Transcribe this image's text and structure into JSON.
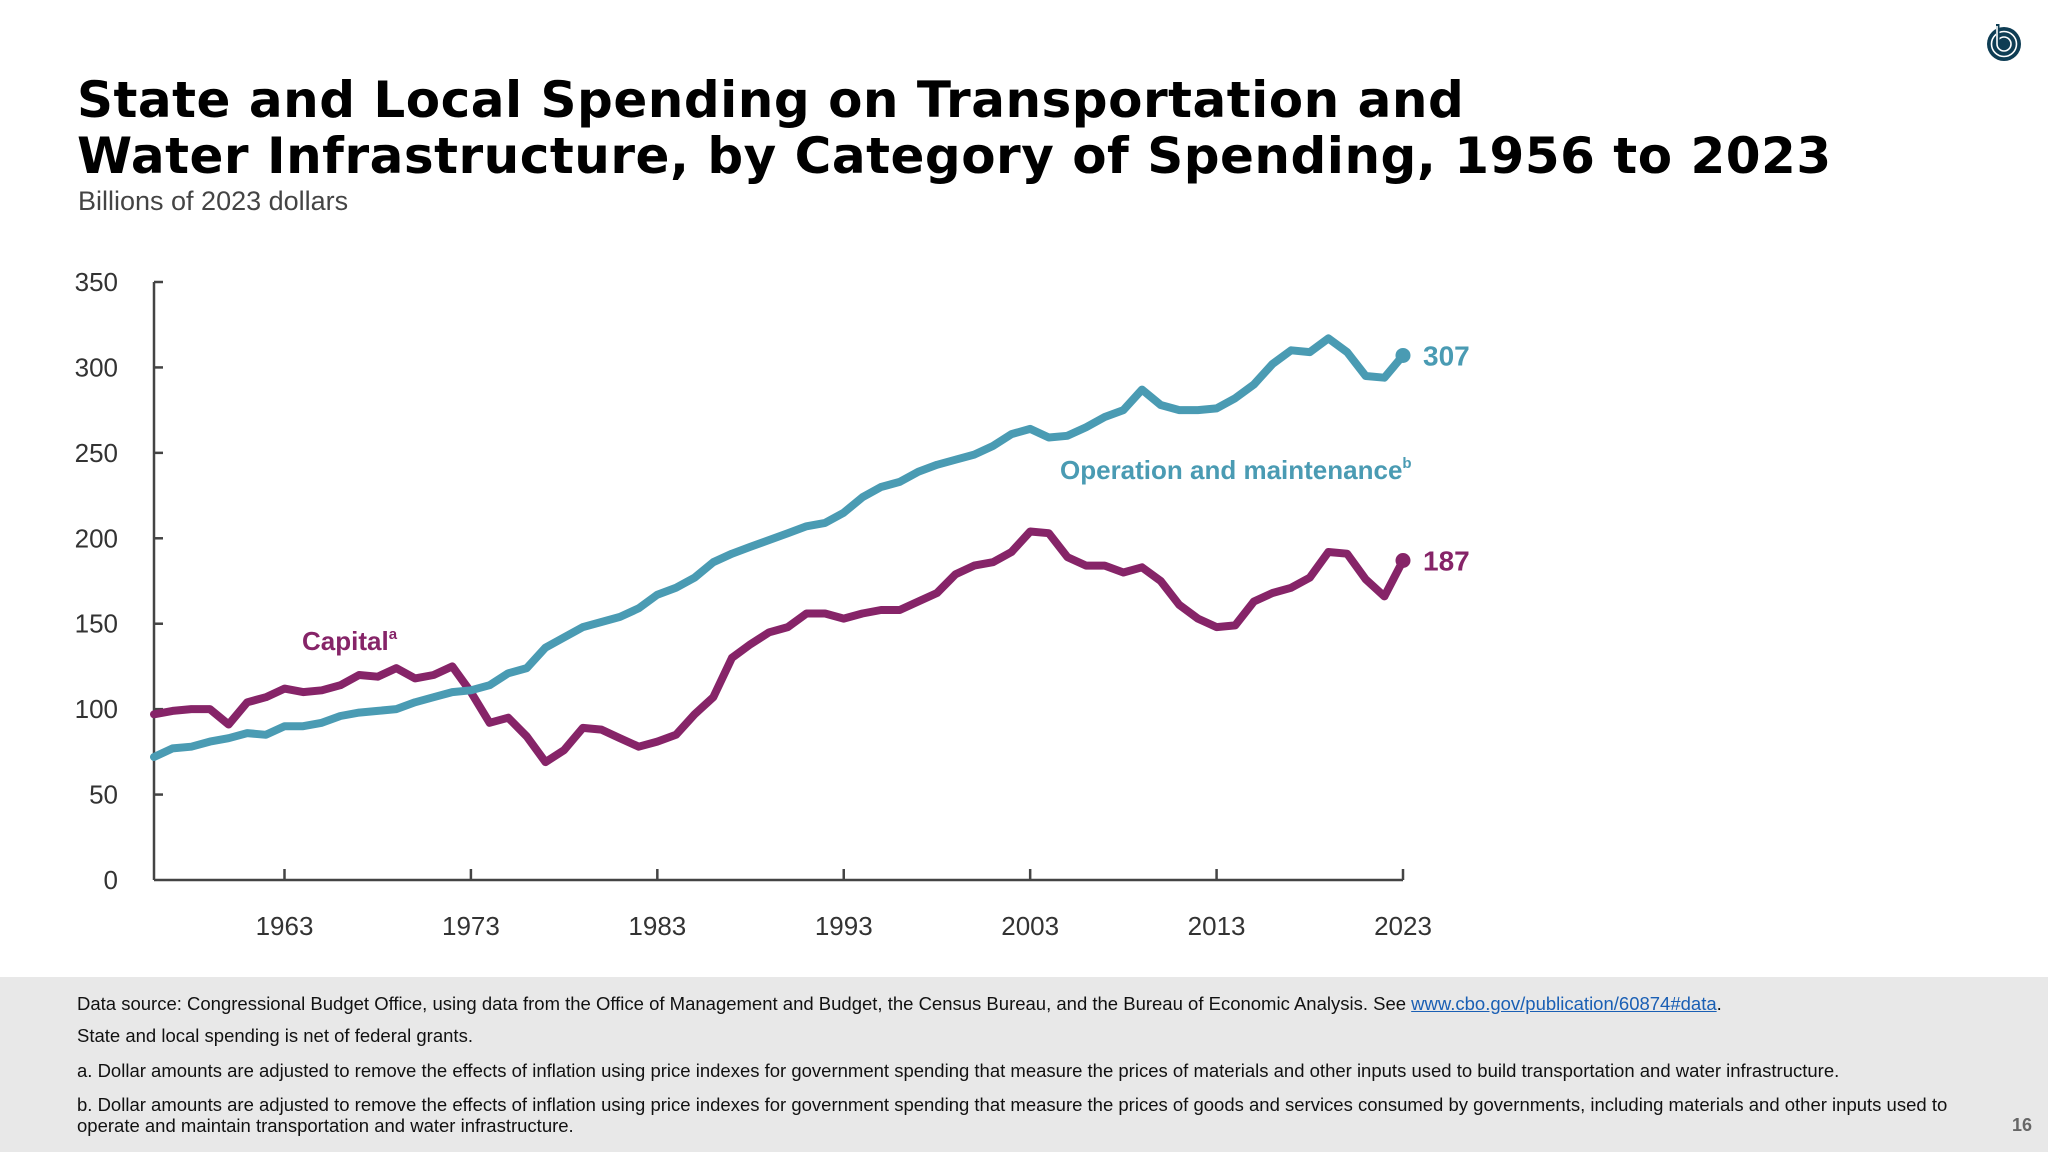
{
  "title_lines": [
    "State and Local Spending on Transportation and",
    "Water Infrastructure, by Category of Spending, 1956 to 2023"
  ],
  "subtitle": "Billions of 2023 dollars",
  "logo": "cbo-logo",
  "colors": {
    "capital": "#862468",
    "operation": "#4a9bb3",
    "axis": "#444444",
    "footer_bg": "#e8e8e8",
    "link": "#1a5fb4"
  },
  "chart_data": {
    "type": "line",
    "title": "State and Local Spending on Transportation and Water Infrastructure, by Category of Spending, 1956 to 2023",
    "ylabel": "Billions of 2023 dollars",
    "xlim": [
      1956,
      2023
    ],
    "ylim": [
      0,
      350
    ],
    "yticks": [
      0,
      50,
      100,
      150,
      200,
      250,
      300,
      350
    ],
    "xticks": [
      1963,
      1973,
      1983,
      1993,
      2003,
      2013,
      2023
    ],
    "grid": false,
    "x": [
      1956,
      1957,
      1958,
      1959,
      1960,
      1961,
      1962,
      1963,
      1964,
      1965,
      1966,
      1967,
      1968,
      1969,
      1970,
      1971,
      1972,
      1973,
      1974,
      1975,
      1976,
      1977,
      1978,
      1979,
      1980,
      1981,
      1982,
      1983,
      1984,
      1985,
      1986,
      1987,
      1988,
      1989,
      1990,
      1991,
      1992,
      1993,
      1994,
      1995,
      1996,
      1997,
      1998,
      1999,
      2000,
      2001,
      2002,
      2003,
      2004,
      2005,
      2006,
      2007,
      2008,
      2009,
      2010,
      2011,
      2012,
      2013,
      2014,
      2015,
      2016,
      2017,
      2018,
      2019,
      2020,
      2021,
      2022,
      2023
    ],
    "series": [
      {
        "name": "Capital",
        "footnote": "a",
        "color": "#862468",
        "end_label": "187",
        "values": [
          97,
          99,
          100,
          100,
          91,
          104,
          107,
          112,
          110,
          111,
          114,
          120,
          119,
          124,
          118,
          120,
          125,
          110,
          92,
          95,
          84,
          69,
          76,
          89,
          88,
          83,
          78,
          81,
          85,
          97,
          107,
          130,
          138,
          145,
          148,
          156,
          156,
          153,
          156,
          158,
          158,
          163,
          168,
          179,
          184,
          186,
          192,
          204,
          203,
          189,
          184,
          184,
          180,
          183,
          175,
          161,
          153,
          148,
          149,
          163,
          168,
          171,
          177,
          192,
          191,
          176,
          166,
          187
        ]
      },
      {
        "name": "Operation and maintenance",
        "footnote": "b",
        "color": "#4a9bb3",
        "end_label": "307",
        "values": [
          72,
          77,
          78,
          81,
          83,
          86,
          85,
          90,
          90,
          92,
          96,
          98,
          99,
          100,
          104,
          107,
          110,
          111,
          114,
          121,
          124,
          136,
          142,
          148,
          151,
          154,
          159,
          167,
          171,
          177,
          186,
          191,
          195,
          199,
          203,
          207,
          209,
          215,
          224,
          230,
          233,
          239,
          243,
          246,
          249,
          254,
          261,
          264,
          259,
          260,
          265,
          271,
          275,
          287,
          278,
          275,
          275,
          276,
          282,
          290,
          302,
          310,
          309,
          317,
          309,
          295,
          294,
          307
        ]
      }
    ]
  },
  "footer": {
    "source_prefix": "Data source: Congressional Budget Office, using data from the Office of Management and Budget, the Census Bureau, and the Bureau of Economic Analysis. See ",
    "source_link": "www.cbo.gov/publication/60874#data",
    "source_suffix": ".",
    "note": "State and local spending is net of federal grants.",
    "note_a": "a. Dollar amounts are adjusted to remove the effects of inflation using price indexes for government spending that measure the prices of materials and other inputs used to build transportation and water infrastructure.",
    "note_b": "b. Dollar amounts are adjusted to remove the effects of inflation using price indexes for government spending that measure the prices of goods and services consumed by governments, including materials and other inputs used to operate and maintain transportation and water infrastructure."
  },
  "page_number": "16"
}
